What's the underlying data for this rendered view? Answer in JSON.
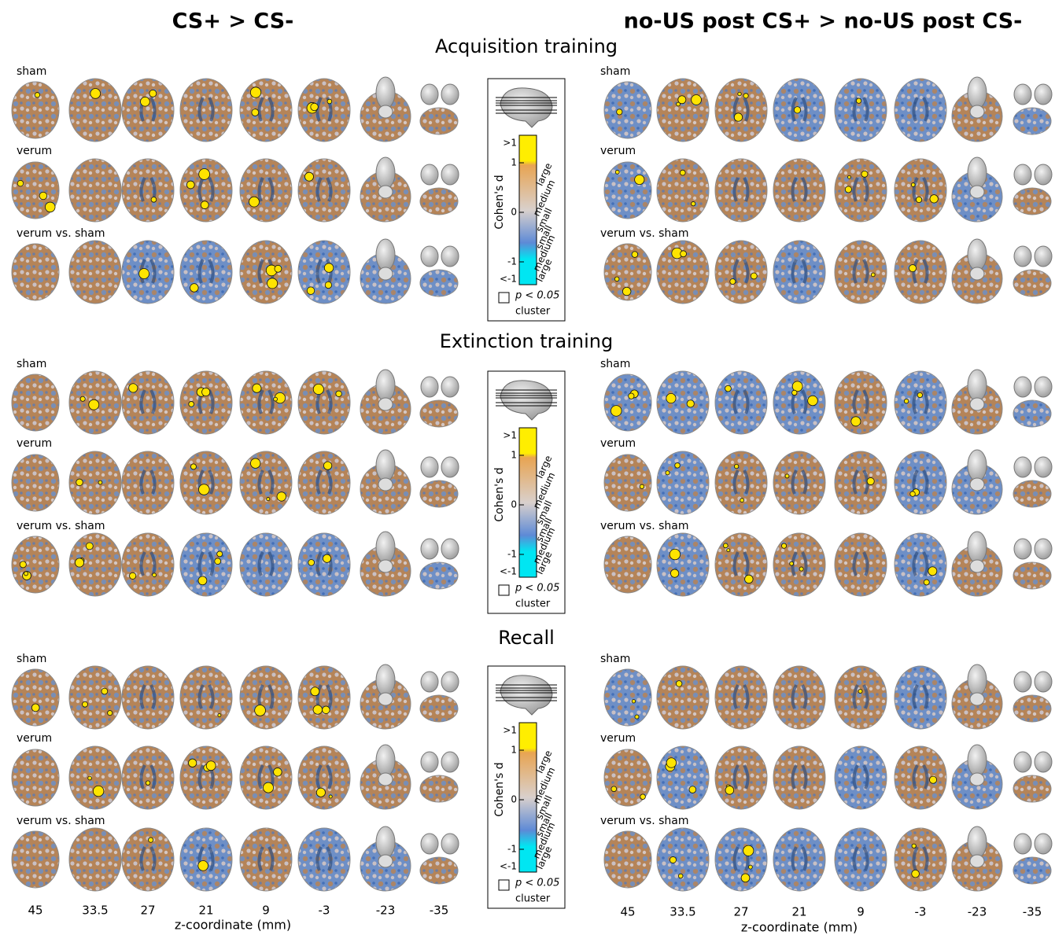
{
  "columns": {
    "left_title": "CS+ > CS-",
    "right_title": "no-US post CS+ > no-US post CS-"
  },
  "sections": [
    {
      "title": "Acquisition training"
    },
    {
      "title": "Extinction training"
    },
    {
      "title": "Recall"
    }
  ],
  "row_labels": [
    "sham",
    "verum",
    "verum vs. sham"
  ],
  "colorbar": {
    "label": "Cohen's d",
    "ticks": [
      ">1",
      "1",
      "0",
      "-1",
      "<-1"
    ],
    "effect_labels": [
      "large",
      "medium",
      "small",
      "small",
      "medium",
      "large"
    ],
    "legend_stat": "p < 0.05",
    "legend_unit": "cluster"
  },
  "x_axis": {
    "ticks": [
      "45",
      "33.5",
      "27",
      "21",
      "9",
      "-3",
      "-23",
      "-35"
    ],
    "label": "z-coordinate (mm)"
  }
}
